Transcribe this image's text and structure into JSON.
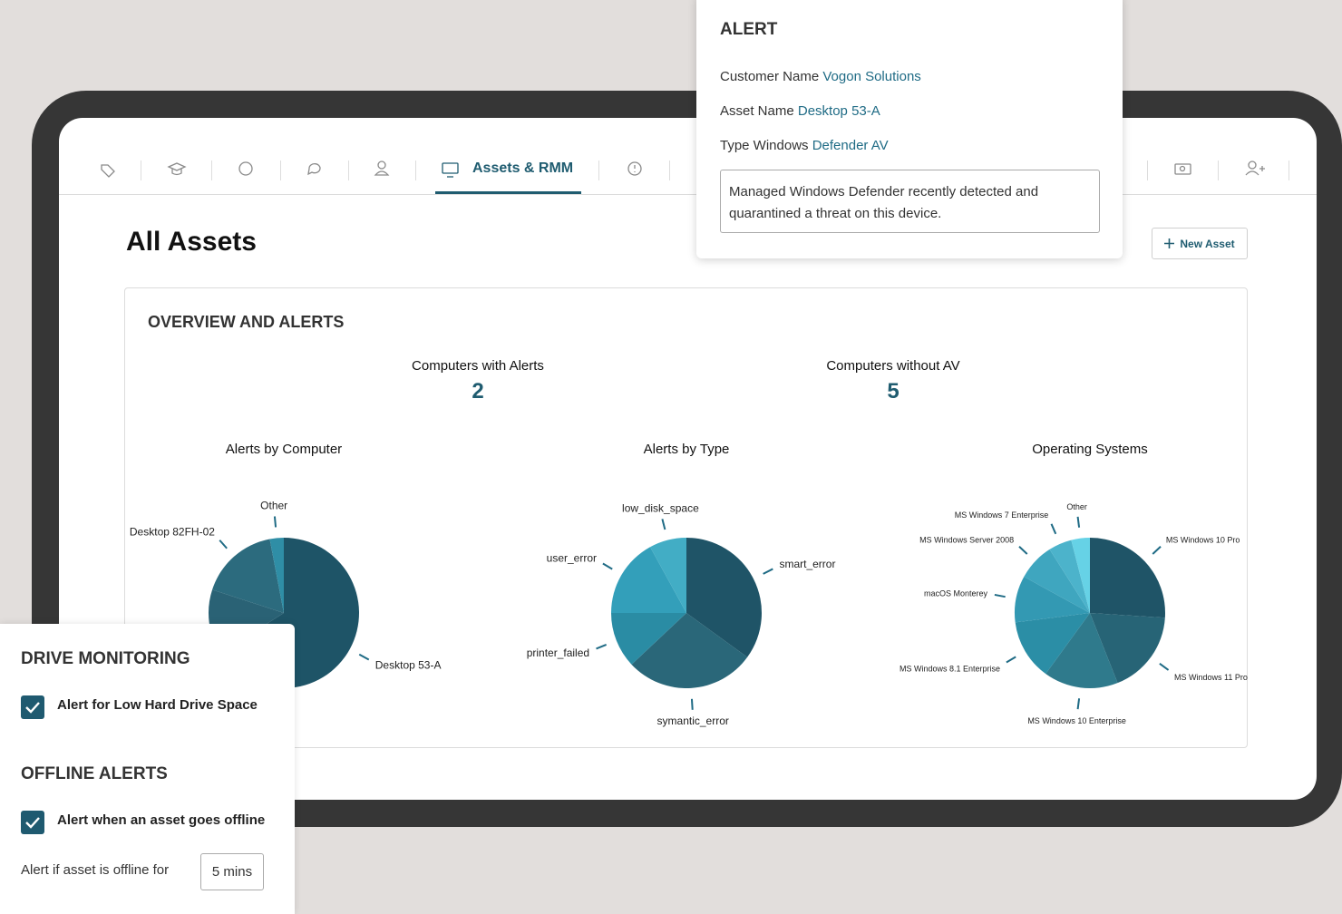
{
  "nav": {
    "active_tab": "Assets & RMM"
  },
  "page": {
    "title": "All Assets",
    "new_asset_button": "New Asset"
  },
  "overview": {
    "title": "OVERVIEW AND ALERTS",
    "stats": [
      {
        "label": "Computers with Alerts",
        "value": 2
      },
      {
        "label": "Computers without AV",
        "value": 5
      }
    ]
  },
  "chart_data": [
    {
      "type": "pie",
      "title": "Alerts by Computer",
      "categories": [
        "Desktop 53-A",
        null,
        "Desktop 82FH-02",
        "Other"
      ],
      "values": [
        66,
        14,
        17,
        3
      ],
      "colors": [
        "#1e5467",
        "#2a6275",
        "#2c6b7e",
        "#2f8ea6"
      ]
    },
    {
      "type": "pie",
      "title": "Alerts by Type",
      "categories": [
        "smart_error",
        "symantic_error",
        "printer_failed",
        "user_error",
        "low_disk_space"
      ],
      "values": [
        35,
        28,
        12,
        17,
        8
      ],
      "colors": [
        "#1f5467",
        "#2a6779",
        "#2a8ca4",
        "#339fba",
        "#42adc5"
      ]
    },
    {
      "type": "pie",
      "title": "Operating Systems",
      "categories": [
        "MS Windows 10 Pro",
        "MS Windows 11 Pro",
        "MS Windows 10 Enterprise",
        "MS Windows 8.1 Enterprise",
        "macOS Monterey",
        "MS Windows Server 2008",
        "MS Windows 7 Enterprise",
        "Other"
      ],
      "values": [
        26,
        18,
        16,
        13,
        10,
        8,
        5,
        4
      ],
      "colors": [
        "#1f5467",
        "#276476",
        "#2f7a8c",
        "#2b8ea6",
        "#3399b3",
        "#3fa6bf",
        "#4cb3cb",
        "#66d2e6"
      ]
    }
  ],
  "alert_popup": {
    "title": "ALERT",
    "rows": [
      {
        "label": "Customer Name",
        "value": "Vogon Solutions"
      },
      {
        "label": "Asset Name",
        "value": "Desktop 53-A"
      },
      {
        "label": "Type Windows",
        "value": "Defender AV"
      }
    ],
    "message": "Managed Windows Defender recently detected and quarantined a threat on this device."
  },
  "monitoring_panel": {
    "drive_title": "DRIVE MONITORING",
    "drive_option": "Alert for Low Hard Drive Space",
    "offline_title": "OFFLINE ALERTS",
    "offline_option": "Alert when an asset goes offline",
    "offline_for_label": "Alert if asset is offline for",
    "offline_for_value": "5 mins"
  }
}
